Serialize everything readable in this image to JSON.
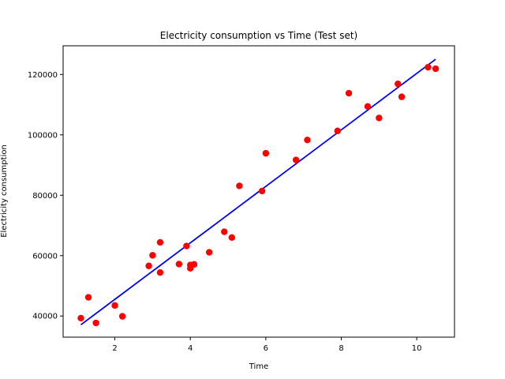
{
  "chart_data": {
    "type": "scatter",
    "title": "Electricity consumption vs Time (Test set)",
    "xlabel": "Time",
    "ylabel": "Electricity consumption",
    "xlim": [
      0.63,
      11.0
    ],
    "ylim": [
      33000,
      129500
    ],
    "xticks": [
      2,
      4,
      6,
      8,
      10
    ],
    "yticks": [
      40000,
      60000,
      80000,
      100000,
      120000
    ],
    "grid": false,
    "legend": "none",
    "series": [
      {
        "kind": "scatter",
        "color": "#ff0000",
        "points": [
          [
            1.1,
            39300
          ],
          [
            1.3,
            46200
          ],
          [
            1.5,
            37700
          ],
          [
            2.0,
            43500
          ],
          [
            2.2,
            39900
          ],
          [
            2.9,
            56600
          ],
          [
            3.0,
            60100
          ],
          [
            3.2,
            54400
          ],
          [
            3.2,
            64400
          ],
          [
            3.7,
            57200
          ],
          [
            3.9,
            63200
          ],
          [
            4.0,
            55800
          ],
          [
            4.0,
            56900
          ],
          [
            4.1,
            57100
          ],
          [
            4.5,
            61100
          ],
          [
            4.9,
            67900
          ],
          [
            5.1,
            66000
          ],
          [
            5.3,
            83100
          ],
          [
            5.9,
            81400
          ],
          [
            6.0,
            93900
          ],
          [
            6.8,
            91700
          ],
          [
            7.1,
            98300
          ],
          [
            7.9,
            101300
          ],
          [
            8.2,
            113800
          ],
          [
            8.7,
            109400
          ],
          [
            9.0,
            105600
          ],
          [
            9.5,
            116900
          ],
          [
            9.6,
            112600
          ],
          [
            10.3,
            122400
          ],
          [
            10.5,
            121900
          ]
        ]
      },
      {
        "kind": "line",
        "color": "#0000ff",
        "points": [
          [
            1.1,
            37100
          ],
          [
            1.3,
            38970
          ],
          [
            1.5,
            40840
          ],
          [
            2.0,
            45520
          ],
          [
            2.2,
            47390
          ],
          [
            2.9,
            53940
          ],
          [
            3.0,
            54870
          ],
          [
            3.2,
            56740
          ],
          [
            3.7,
            61420
          ],
          [
            3.9,
            63290
          ],
          [
            4.0,
            64230
          ],
          [
            4.1,
            65160
          ],
          [
            4.5,
            68900
          ],
          [
            4.9,
            72640
          ],
          [
            5.1,
            74510
          ],
          [
            5.3,
            76390
          ],
          [
            5.9,
            82000
          ],
          [
            6.0,
            82940
          ],
          [
            6.8,
            90420
          ],
          [
            7.1,
            93230
          ],
          [
            7.9,
            100710
          ],
          [
            8.2,
            103520
          ],
          [
            8.7,
            108200
          ],
          [
            9.0,
            111010
          ],
          [
            9.5,
            115690
          ],
          [
            9.6,
            116620
          ],
          [
            10.3,
            123170
          ],
          [
            10.5,
            125040
          ]
        ]
      }
    ]
  }
}
